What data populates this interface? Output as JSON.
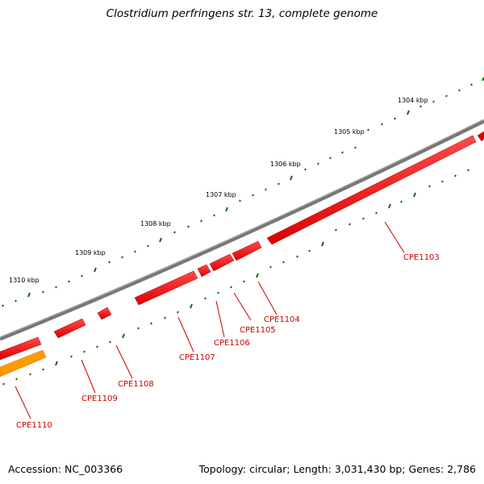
{
  "title": "Clostridium perfringens str. 13, complete genome",
  "footer": {
    "accession": "Accession: NC_003366",
    "stats": "Topology: circular; Length: 3,031,430 bp; Genes: 2,786"
  },
  "colors": {
    "backbone": "#777777",
    "tick": "#116611",
    "gene_forward": "#ee0000",
    "gene_reverse": "#ff9900",
    "label": "#cc0000"
  },
  "kbp_ticks": [
    "1304 kbp",
    "1305 kbp",
    "1306 kbp",
    "1307 kbp",
    "1308 kbp",
    "1309 kbp",
    "1310 kbp"
  ],
  "genes": [
    "CPE1103",
    "CPE1104",
    "CPE1105",
    "CPE1106",
    "CPE1107",
    "CPE1108",
    "CPE1109",
    "CPE1110"
  ]
}
